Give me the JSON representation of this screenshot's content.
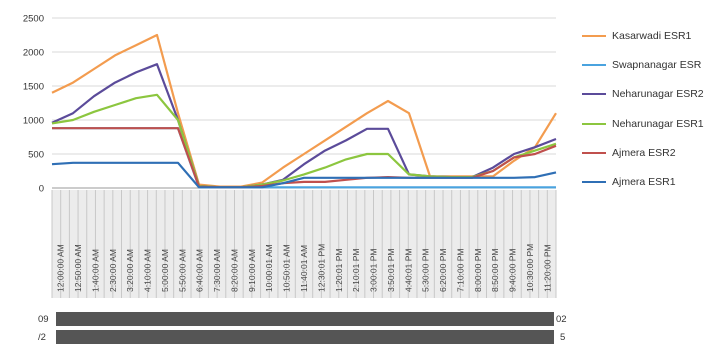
{
  "chart_data": {
    "type": "line",
    "title": "",
    "xlabel": "",
    "ylabel": "",
    "ylim": [
      0,
      2500
    ],
    "yticks": [
      0,
      500,
      1000,
      1500,
      2000,
      2500
    ],
    "grid": true,
    "legend_position": "right",
    "x_tick_labels": [
      "12:00:00 AM",
      "12:50:00 AM",
      "1:40:00 AM",
      "2:30:00 AM",
      "3:20:00 AM",
      "4:10:00 AM",
      "5:00:00 AM",
      "5:50:00 AM",
      "6:40:00 AM",
      "7:30:00 AM",
      "8:20:00 AM",
      "9:10:00 AM",
      "10:00:01 AM",
      "10:50:01 AM",
      "11:40:01 AM",
      "12:30:01 PM",
      "1:20:01 PM",
      "2:10:01 PM",
      "3:00:01 PM",
      "3:50:01 PM",
      "4:40:01 PM",
      "5:30:00 PM",
      "6:20:00 PM",
      "7:10:00 PM",
      "8:00:00 PM",
      "8:50:00 PM",
      "9:40:00 PM",
      "10:30:00 PM",
      "11:20:00 PM"
    ],
    "x_left_label": "09",
    "x_right_label": "02",
    "x_left_label2": "/2",
    "x_right_label2": "5",
    "series": [
      {
        "name": "Kasarwadi ESR1",
        "color": "#f39c4f",
        "values": [
          1400,
          1550,
          1750,
          1950,
          2100,
          2250,
          1100,
          50,
          20,
          20,
          80,
          300,
          500,
          700,
          900,
          1100,
          1280,
          1100,
          170,
          170,
          170,
          170,
          400,
          600,
          1100
        ]
      },
      {
        "name": "Swapnanagar ESR",
        "color": "#4aa3df",
        "values": [
          880,
          880,
          880,
          880,
          880,
          880,
          880,
          10,
          10,
          10,
          10,
          10,
          10,
          10,
          10,
          10,
          10,
          10,
          10,
          10,
          10,
          10,
          10,
          10,
          10
        ]
      },
      {
        "name": "Neharunagar ESR2",
        "color": "#5b4b9a",
        "values": [
          960,
          1100,
          1350,
          1550,
          1700,
          1820,
          1000,
          30,
          10,
          10,
          50,
          120,
          350,
          550,
          700,
          870,
          870,
          200,
          170,
          160,
          160,
          300,
          500,
          600,
          720
        ]
      },
      {
        "name": "Neharunagar ESR1",
        "color": "#8cc63f",
        "values": [
          950,
          1000,
          1120,
          1220,
          1320,
          1370,
          1000,
          30,
          10,
          10,
          50,
          110,
          200,
          300,
          420,
          500,
          500,
          200,
          170,
          160,
          160,
          250,
          450,
          550,
          650
        ]
      },
      {
        "name": "Ajmera ESR2",
        "color": "#c0504d",
        "values": [
          880,
          880,
          880,
          880,
          880,
          880,
          880,
          20,
          10,
          10,
          30,
          70,
          90,
          90,
          120,
          150,
          160,
          150,
          150,
          150,
          150,
          250,
          450,
          500,
          620
        ]
      },
      {
        "name": "Ajmera ESR1",
        "color": "#2f6fb5",
        "values": [
          350,
          370,
          370,
          370,
          370,
          370,
          370,
          10,
          10,
          10,
          10,
          70,
          150,
          150,
          150,
          150,
          150,
          150,
          150,
          150,
          150,
          150,
          150,
          160,
          230
        ]
      }
    ]
  }
}
